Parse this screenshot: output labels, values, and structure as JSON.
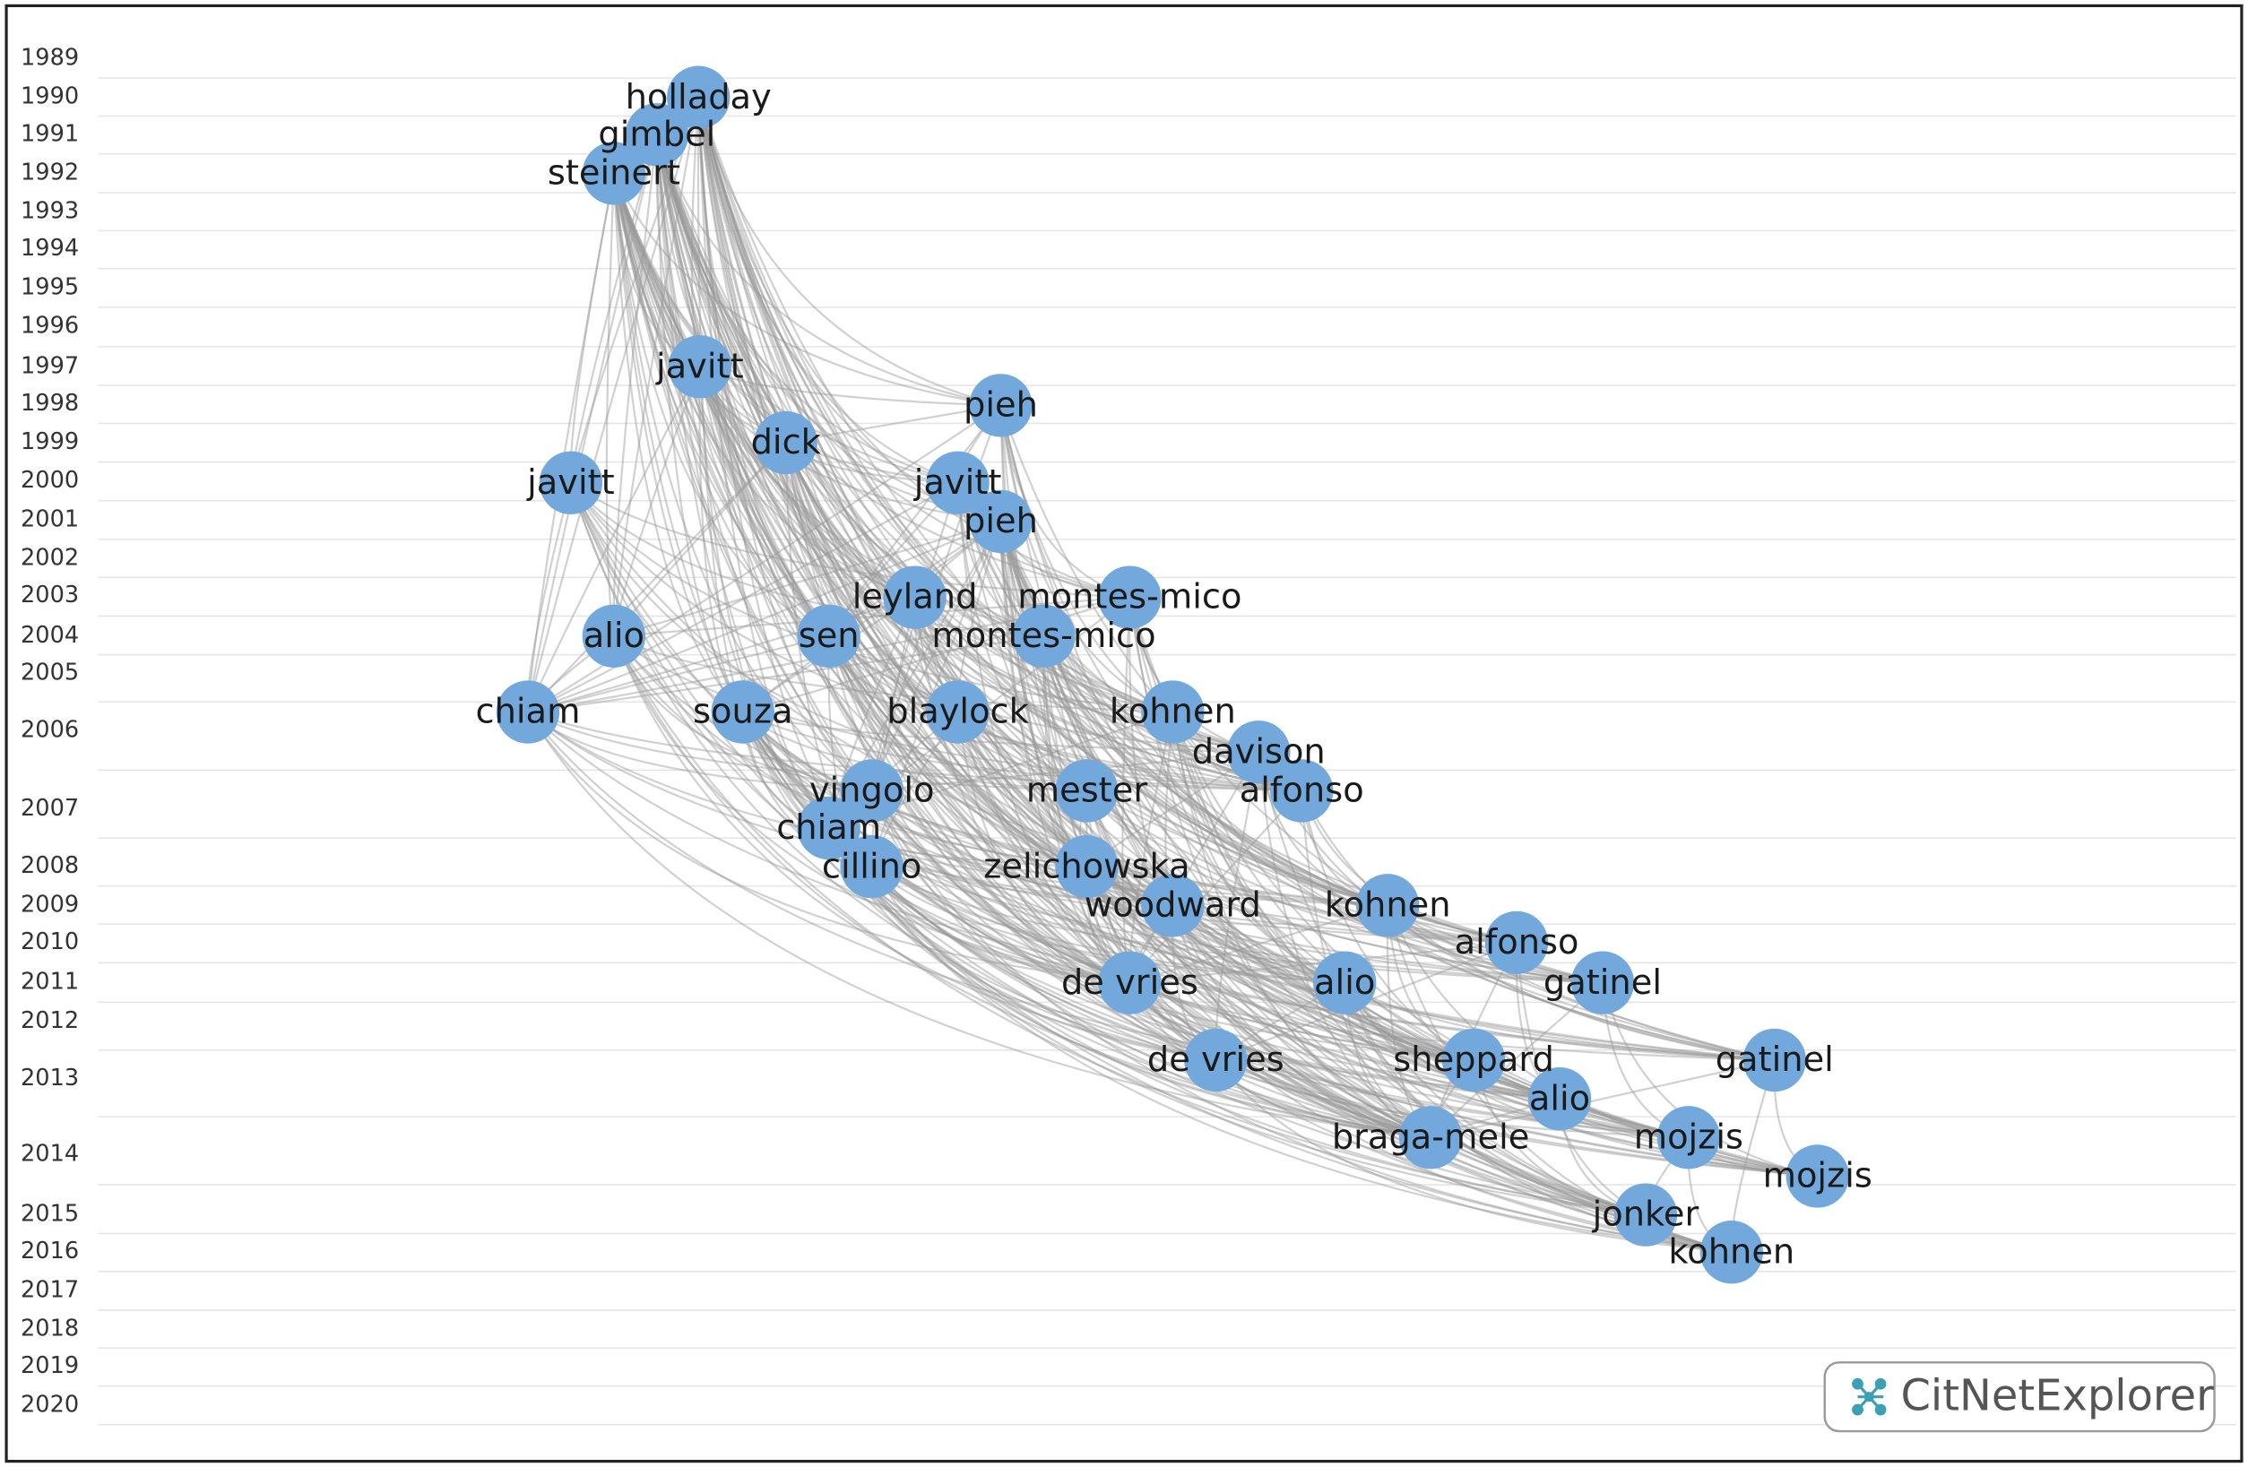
{
  "years": [
    "1989",
    "1990",
    "1991",
    "1992",
    "1993",
    "1994",
    "1995",
    "1996",
    "1997",
    "1998",
    "1999",
    "2000",
    "2001",
    "2002",
    "2003",
    "2004",
    "2005",
    "2006",
    "2007",
    "2008",
    "2009",
    "2010",
    "2011",
    "2012",
    "2013",
    "2014",
    "2015",
    "2016",
    "2017",
    "2018",
    "2019",
    "2020"
  ],
  "nodes": [
    "holladay",
    "gimbel",
    "steinert",
    "javitt",
    "pieh",
    "dick",
    "javitt",
    "javitt",
    "pieh",
    "leyland",
    "montes-mico",
    "alio",
    "sen",
    "montes-mico",
    "chiam",
    "souza",
    "blaylock",
    "kohnen",
    "davison",
    "vingolo",
    "mester",
    "alfonso",
    "chiam",
    "cillino",
    "zelichowska",
    "woodward",
    "kohnen",
    "alfonso",
    "de vries",
    "alio",
    "gatinel",
    "de vries",
    "sheppard",
    "gatinel",
    "alio",
    "braga-mele",
    "mojzis",
    "mojzis",
    "jonker",
    "kohnen"
  ],
  "logo": "CitNetExplorer"
}
